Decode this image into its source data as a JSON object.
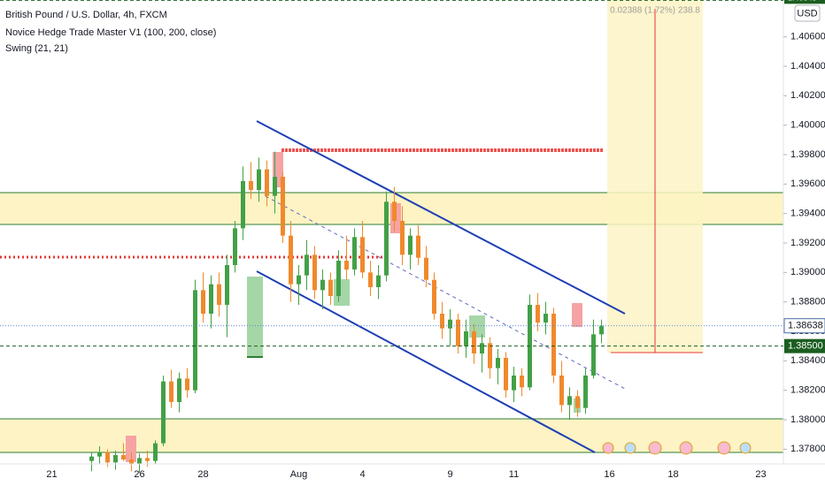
{
  "chart_data": {
    "type": "candlestick",
    "title": "British Pound / U.S. Dollar, 4h, FXCM",
    "indicators": [
      "Novice Hedge Trade Master V1 (100, 200, close)",
      "Swing (21, 21)"
    ],
    "currency": "USD",
    "measure_label": "0.02388 (1.72%) 238.8",
    "categories": [
      null,
      null,
      null,
      null,
      null,
      null,
      "21",
      null,
      null,
      null,
      null,
      null,
      null,
      null,
      null,
      null,
      null,
      "26",
      null,
      null,
      null,
      null,
      null,
      null,
      null,
      "28",
      null,
      null,
      null,
      null,
      null,
      null,
      null,
      null,
      null,
      null,
      null,
      "Aug",
      null,
      null,
      null,
      null,
      null,
      null,
      null,
      "4",
      null,
      null,
      null,
      null,
      null,
      null,
      null,
      null,
      null,
      null,
      "9",
      null,
      null,
      null,
      null,
      null,
      null,
      null,
      "11",
      null,
      null,
      null,
      null,
      null,
      null,
      null,
      null,
      null,
      null,
      null,
      "16",
      null,
      null,
      null,
      null,
      null,
      null,
      null,
      "18",
      null,
      null,
      null,
      null,
      null,
      null,
      null,
      null,
      null,
      null,
      "23",
      null,
      null
    ],
    "open": [
      null,
      null,
      null,
      null,
      null,
      null,
      null,
      null,
      null,
      null,
      null,
      1.3772,
      1.3775,
      1.3778,
      1.3771,
      1.3776,
      1.3773,
      1.377,
      1.3774,
      1.3772,
      1.3784,
      1.3826,
      1.3812,
      1.3828,
      1.382,
      1.3888,
      1.3872,
      1.3892,
      1.3878,
      1.3905,
      1.393,
      1.3962,
      1.3956,
      1.397,
      1.3952,
      1.3965,
      1.3925,
      1.3892,
      1.3898,
      1.3912,
      1.3888,
      1.3895,
      1.3884,
      1.3908,
      1.3902,
      1.3924,
      1.39,
      1.389,
      1.3898,
      1.3948,
      1.3935,
      1.3912,
      1.3925,
      1.391,
      1.3895,
      1.3872,
      1.3862,
      1.3868,
      1.385,
      1.386,
      1.3845,
      1.3852,
      1.3835,
      1.3842,
      1.382,
      1.383,
      1.3822,
      1.3878,
      1.3866,
      1.3872,
      1.383,
      1.381,
      1.3816,
      1.3808,
      1.383,
      1.3858,
      null,
      null,
      null,
      null,
      null,
      null,
      null,
      null,
      null,
      null,
      null,
      null,
      null,
      null,
      null,
      null,
      null,
      null,
      null,
      null,
      null,
      null
    ],
    "high": [
      null,
      null,
      null,
      null,
      null,
      null,
      null,
      null,
      null,
      null,
      null,
      1.3778,
      1.3782,
      1.378,
      1.3779,
      1.3784,
      1.3778,
      1.3777,
      1.3779,
      1.3786,
      1.383,
      1.3834,
      1.3832,
      1.3835,
      1.3895,
      1.39,
      1.3898,
      1.39,
      1.3912,
      1.3935,
      1.3972,
      1.3975,
      1.3978,
      1.3976,
      1.3982,
      1.3968,
      1.3935,
      1.3905,
      1.3922,
      1.3918,
      1.3902,
      1.39,
      1.3915,
      1.3925,
      1.393,
      1.3935,
      1.3908,
      1.3905,
      1.3955,
      1.3958,
      1.3945,
      1.393,
      1.3932,
      1.3918,
      1.39,
      1.388,
      1.3875,
      1.3872,
      1.3868,
      1.3865,
      1.3858,
      1.3856,
      1.3848,
      1.3846,
      1.3836,
      1.3835,
      1.3885,
      1.3886,
      1.388,
      1.3876,
      1.384,
      1.3822,
      1.382,
      1.3835,
      1.3868,
      1.3868,
      null,
      null,
      null,
      null,
      null,
      null,
      null,
      null,
      null,
      null,
      null,
      null,
      null,
      null,
      null,
      null,
      null,
      null,
      null,
      null,
      null,
      null
    ],
    "low": [
      null,
      null,
      null,
      null,
      null,
      null,
      null,
      null,
      null,
      null,
      null,
      1.3765,
      1.377,
      1.3768,
      1.3766,
      1.3772,
      1.3765,
      1.3764,
      1.3768,
      1.377,
      1.3782,
      1.3808,
      1.3805,
      1.3815,
      1.3818,
      1.3866,
      1.3862,
      1.387,
      1.3856,
      1.39,
      1.3922,
      1.395,
      1.3948,
      1.3945,
      1.394,
      1.392,
      1.388,
      1.3878,
      1.3888,
      1.3882,
      1.3875,
      1.3878,
      1.388,
      1.3895,
      1.3898,
      1.3896,
      1.3884,
      1.3882,
      1.3894,
      1.3928,
      1.3905,
      1.3902,
      1.3905,
      1.389,
      1.3868,
      1.3855,
      1.385,
      1.3845,
      1.3842,
      1.3838,
      1.3832,
      1.3828,
      1.3824,
      1.3815,
      1.3812,
      1.3816,
      1.382,
      1.386,
      1.3858,
      1.3825,
      1.3805,
      1.38,
      1.3802,
      1.3804,
      1.3828,
      1.3852,
      null,
      null,
      null,
      null,
      null,
      null,
      null,
      null,
      null,
      null,
      null,
      null,
      null,
      null,
      null,
      null,
      null,
      null,
      null,
      null,
      null,
      null
    ],
    "close": [
      null,
      null,
      null,
      null,
      null,
      null,
      null,
      null,
      null,
      null,
      null,
      1.3775,
      1.3778,
      1.3771,
      1.3776,
      1.3773,
      1.377,
      1.3774,
      1.3772,
      1.3784,
      1.3826,
      1.3812,
      1.3828,
      1.382,
      1.3888,
      1.3872,
      1.3892,
      1.3878,
      1.3905,
      1.393,
      1.3962,
      1.3956,
      1.397,
      1.3952,
      1.3965,
      1.3925,
      1.3892,
      1.3898,
      1.3912,
      1.3888,
      1.3895,
      1.3884,
      1.3908,
      1.3902,
      1.3924,
      1.39,
      1.389,
      1.3898,
      1.3948,
      1.3935,
      1.3912,
      1.3925,
      1.391,
      1.3895,
      1.3872,
      1.3862,
      1.3868,
      1.385,
      1.386,
      1.3845,
      1.3852,
      1.3835,
      1.3842,
      1.382,
      1.383,
      1.3822,
      1.3878,
      1.3866,
      1.3872,
      1.383,
      1.381,
      1.3816,
      1.3808,
      1.383,
      1.3858,
      1.38638,
      null,
      null,
      null,
      null,
      null,
      null,
      null,
      null,
      null,
      null,
      null,
      null,
      null,
      null,
      null,
      null,
      null,
      null,
      null,
      null,
      null,
      null
    ],
    "up_color": "#43a047",
    "down_color": "#f0892c",
    "ylim": [
      1.377,
      1.4085
    ],
    "yticks": [
      {
        "value": 1.378,
        "label": "1.37800"
      },
      {
        "value": 1.38,
        "label": "1.38000"
      },
      {
        "value": 1.382,
        "label": "1.38200"
      },
      {
        "value": 1.384,
        "label": "1.38400"
      },
      {
        "value": 1.386,
        "label": "1.38600"
      },
      {
        "value": 1.388,
        "label": "1.38800"
      },
      {
        "value": 1.39,
        "label": "1.39000"
      },
      {
        "value": 1.392,
        "label": "1.39200"
      },
      {
        "value": 1.394,
        "label": "1.39400"
      },
      {
        "value": 1.396,
        "label": "1.39600"
      },
      {
        "value": 1.398,
        "label": "1.39800"
      },
      {
        "value": 1.4,
        "label": "1.40000"
      },
      {
        "value": 1.402,
        "label": "1.40200"
      },
      {
        "value": 1.404,
        "label": "1.40400"
      },
      {
        "value": 1.406,
        "label": "1.40600"
      }
    ],
    "last_price": 1.38638,
    "alert_price": {
      "value": 1.385,
      "label": "1.38500"
    },
    "target_price": 1.40848
  }
}
